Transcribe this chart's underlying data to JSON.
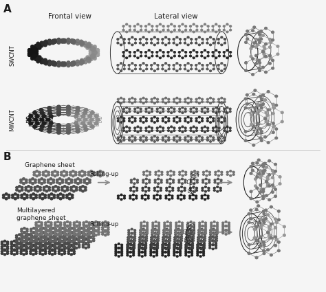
{
  "panel_A_label": "A",
  "panel_B_label": "B",
  "col_labels": [
    "Frontal view",
    "Lateral view"
  ],
  "row_labels_A": [
    "SWCNT",
    "MWCNT"
  ],
  "text_B_row1_label": "Graphene sheet",
  "text_B_row1_arrow": "Rolling-up",
  "text_B_row2_label": "Multilayered\ngraphene sheet",
  "text_B_row2_arrow": "Rolling-up",
  "background_color": "#f5f5f5",
  "text_color": "#1a1a1a",
  "fig_width": 4.74,
  "fig_height": 4.25,
  "dpi": 100,
  "gray_atom": "#4a4a4a",
  "gray_bond": "#5a5a5a",
  "gray_light": "#aaaaaa",
  "arrow_color": "#888888"
}
